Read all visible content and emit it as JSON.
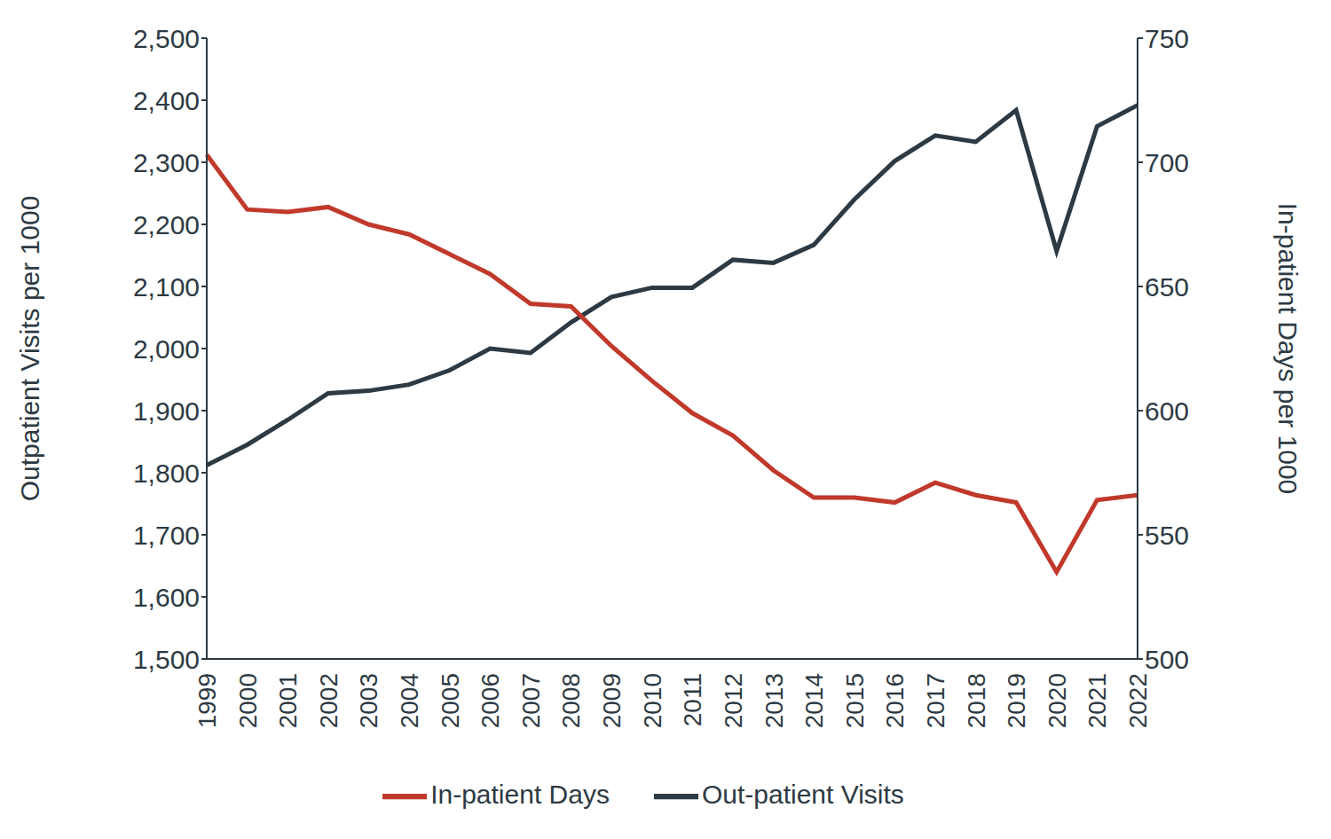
{
  "chart_data": {
    "type": "line",
    "categories": [
      "1999",
      "2000",
      "2001",
      "2002",
      "2003",
      "2004",
      "2005",
      "2006",
      "2007",
      "2008",
      "2009",
      "2010",
      "2011",
      "2012",
      "2013",
      "2014",
      "2015",
      "2016",
      "2017",
      "2018",
      "2019",
      "2020",
      "2021",
      "2022"
    ],
    "y_label": "Outpatient Visits per 1000",
    "y2_label": "In-patient Days per 1000",
    "ylim": [
      1500,
      2500
    ],
    "yticks": [
      {
        "value": 1500,
        "label": "1,500"
      },
      {
        "value": 1600,
        "label": "1,600"
      },
      {
        "value": 1700,
        "label": "1,700"
      },
      {
        "value": 1800,
        "label": "1,800"
      },
      {
        "value": 1900,
        "label": "1,900"
      },
      {
        "value": 2000,
        "label": "2,000"
      },
      {
        "value": 2100,
        "label": "2,100"
      },
      {
        "value": 2200,
        "label": "2,200"
      },
      {
        "value": 2300,
        "label": "2,300"
      },
      {
        "value": 2400,
        "label": "2,400"
      },
      {
        "value": 2500,
        "label": "2,500"
      }
    ],
    "y2lim": [
      500,
      750
    ],
    "y2ticks": [
      500,
      550,
      600,
      650,
      700,
      750
    ],
    "grid": false,
    "legend": "bottom",
    "series": [
      {
        "name": "Out-patient Visits",
        "color": "#2d3a43",
        "axis": "y",
        "values": [
          1812,
          1845,
          1885,
          1928,
          1932,
          1942,
          1965,
          2000,
          1993,
          2042,
          2083,
          2098,
          2098,
          2143,
          2138,
          2167,
          2240,
          2302,
          2343,
          2333,
          2384,
          2157,
          2358,
          2392
        ]
      },
      {
        "name": "In-patient Days",
        "color": "#c0392b",
        "axis": "y2",
        "values": [
          703,
          681,
          680,
          682,
          675,
          671,
          663,
          655,
          643,
          642,
          626,
          612,
          599,
          590,
          576,
          565,
          565,
          563,
          571,
          566,
          563,
          535,
          564,
          566
        ]
      }
    ]
  }
}
